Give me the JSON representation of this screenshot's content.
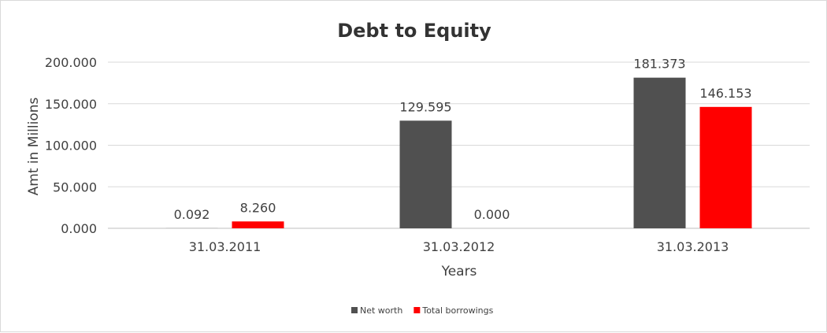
{
  "chart_data": {
    "type": "bar",
    "title": "Debt to Equity",
    "xlabel": "Years",
    "ylabel": "Amt in Millions",
    "categories": [
      "31.03.2011",
      "31.03.2012",
      "31.03.2013"
    ],
    "series": [
      {
        "name": "Net worth",
        "values": [
          0.092,
          129.595,
          181.373
        ],
        "labels": [
          "0.092",
          "129.595",
          "181.373"
        ],
        "color": "#505050"
      },
      {
        "name": "Total borrowings",
        "values": [
          8.26,
          0.0,
          146.153
        ],
        "labels": [
          "8.260",
          "0.000",
          "146.153"
        ],
        "color": "#ff0000"
      }
    ],
    "ylim": [
      0,
      200
    ],
    "yticks": [
      "0.000",
      "50.000",
      "100.000",
      "150.000",
      "200.000"
    ],
    "grid": true,
    "legend": "bottom"
  }
}
